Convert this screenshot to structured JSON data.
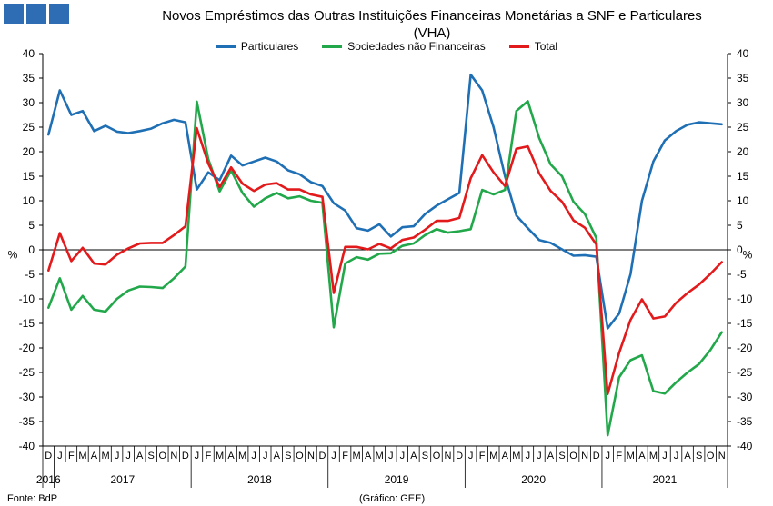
{
  "title_line1": "Novos Empréstimos das Outras Instituições Financeiras Monetárias a SNF e Particulares",
  "title_line2": "(VHA)",
  "logo_color": "#2e6db4",
  "legend": [
    {
      "name": "Particulares",
      "color": "#1f6fb5"
    },
    {
      "name": "Sociedades não Financeiras",
      "color": "#22a84a"
    },
    {
      "name": "Total",
      "color": "#e31a1c"
    }
  ],
  "footer_left": "Fonte: BdP",
  "footer_center": "(Gráfico: GEE)",
  "y_unit_left": "%",
  "y_unit_right": "%",
  "chart_data": {
    "type": "line",
    "ylim": [
      -40,
      40
    ],
    "yticks": [
      -40,
      -35,
      -30,
      -25,
      -20,
      -15,
      -10,
      -5,
      0,
      5,
      10,
      15,
      20,
      25,
      30,
      35,
      40
    ],
    "grid": false,
    "legend_position": "top-center",
    "month_labels": [
      "D",
      "J",
      "F",
      "M",
      "A",
      "M",
      "J",
      "J",
      "A",
      "S",
      "O",
      "N",
      "D",
      "J",
      "F",
      "M",
      "A",
      "M",
      "J",
      "J",
      "A",
      "S",
      "O",
      "N",
      "D",
      "J",
      "F",
      "M",
      "A",
      "M",
      "J",
      "J",
      "A",
      "S",
      "O",
      "N",
      "D",
      "J",
      "F",
      "M",
      "A",
      "M",
      "J",
      "J",
      "A",
      "S",
      "O",
      "N",
      "D",
      "J",
      "F",
      "M",
      "A",
      "M",
      "J",
      "J",
      "A",
      "S",
      "O",
      "N"
    ],
    "year_labels": [
      {
        "label": "2016",
        "start": 0,
        "end": 0
      },
      {
        "label": "2017",
        "start": 1,
        "end": 12
      },
      {
        "label": "2018",
        "start": 13,
        "end": 24
      },
      {
        "label": "2019",
        "start": 25,
        "end": 36
      },
      {
        "label": "2020",
        "start": 37,
        "end": 48
      },
      {
        "label": "2021",
        "start": 49,
        "end": 59
      }
    ],
    "series": [
      {
        "name": "Particulares",
        "color": "#1f6fb5",
        "values": [
          23.5,
          32.5,
          27.5,
          28.3,
          24.2,
          25.3,
          24.1,
          23.8,
          24.2,
          24.7,
          25.8,
          26.5,
          26.0,
          12.3,
          15.8,
          14.2,
          19.2,
          17.2,
          18.0,
          18.8,
          18.0,
          16.2,
          15.4,
          13.8,
          13.0,
          9.5,
          8.0,
          4.4,
          3.9,
          5.2,
          2.7,
          4.6,
          4.8,
          7.3,
          9.0,
          10.3,
          11.6,
          35.7,
          32.5,
          25.0,
          15.0,
          7.0,
          4.4,
          2.0,
          1.4,
          0.1,
          -1.2,
          -1.1,
          -1.4,
          -16.0,
          -13.0,
          -5.0,
          10.0,
          18.0,
          22.3,
          24.2,
          25.5,
          26.0,
          25.8,
          25.6
        ]
      },
      {
        "name": "Sociedades não Financeiras",
        "color": "#22a84a",
        "values": [
          -11.8,
          -5.8,
          -12.2,
          -9.4,
          -12.2,
          -12.6,
          -10.0,
          -8.3,
          -7.5,
          -7.6,
          -7.8,
          -5.8,
          -3.4,
          30.2,
          18.5,
          11.9,
          16.2,
          11.6,
          8.8,
          10.5,
          11.6,
          10.5,
          10.9,
          10.0,
          9.6,
          -15.8,
          -2.8,
          -1.5,
          -2.0,
          -0.8,
          -0.7,
          0.8,
          1.3,
          3.0,
          4.2,
          3.5,
          3.8,
          4.2,
          12.2,
          11.3,
          12.2,
          28.3,
          30.3,
          22.8,
          17.4,
          15.0,
          9.8,
          7.3,
          2.4,
          -37.8,
          -26.0,
          -22.5,
          -21.5,
          -28.8,
          -29.3,
          -27.0,
          -25.0,
          -23.3,
          -20.4,
          -16.8
        ]
      },
      {
        "name": "Total",
        "color": "#e31a1c",
        "values": [
          -4.2,
          3.4,
          -2.3,
          0.4,
          -2.8,
          -3.0,
          -1.0,
          0.3,
          1.3,
          1.4,
          1.4,
          3.0,
          4.8,
          24.8,
          17.6,
          12.8,
          16.8,
          13.5,
          12.0,
          13.3,
          13.6,
          12.3,
          12.3,
          11.3,
          10.8,
          -8.8,
          0.6,
          0.6,
          0.1,
          1.2,
          0.3,
          2.0,
          2.5,
          4.1,
          5.9,
          5.9,
          6.5,
          14.6,
          19.3,
          15.8,
          13.0,
          20.6,
          21.1,
          15.6,
          12.0,
          9.8,
          6.0,
          4.5,
          1.1,
          -29.4,
          -21.0,
          -14.3,
          -10.1,
          -14.0,
          -13.6,
          -10.8,
          -8.8,
          -7.1,
          -4.9,
          -2.5
        ]
      }
    ]
  }
}
